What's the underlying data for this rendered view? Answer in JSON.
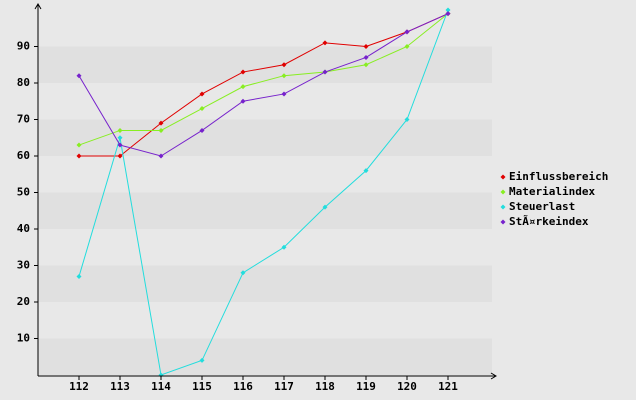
{
  "chart_data": {
    "type": "line",
    "x": [
      112,
      113,
      114,
      115,
      116,
      117,
      118,
      119,
      120,
      121
    ],
    "xlim": [
      111,
      122
    ],
    "xticks": [
      112,
      113,
      114,
      115,
      116,
      117,
      118,
      119,
      120,
      121
    ],
    "ylim": [
      0,
      100
    ],
    "yticks": [
      10,
      20,
      30,
      40,
      50,
      60,
      70,
      80,
      90
    ],
    "grid": true,
    "legend": "right",
    "series": [
      {
        "name": "Einflussbereich",
        "color": "#e00000",
        "values": [
          60,
          60,
          69,
          77,
          83,
          85,
          91,
          90,
          94,
          99
        ]
      },
      {
        "name": "Materialindex",
        "color": "#88ee22",
        "values": [
          63,
          67,
          67,
          73,
          79,
          82,
          83,
          85,
          90,
          99
        ]
      },
      {
        "name": "Steuerlast",
        "color": "#22dddd",
        "values": [
          27,
          65,
          0,
          4,
          28,
          35,
          46,
          56,
          70,
          100
        ]
      },
      {
        "name": "StÃ¤rkeindex",
        "color": "#7722cc",
        "values": [
          82,
          63,
          60,
          67,
          75,
          77,
          83,
          87,
          94,
          99
        ]
      }
    ]
  }
}
